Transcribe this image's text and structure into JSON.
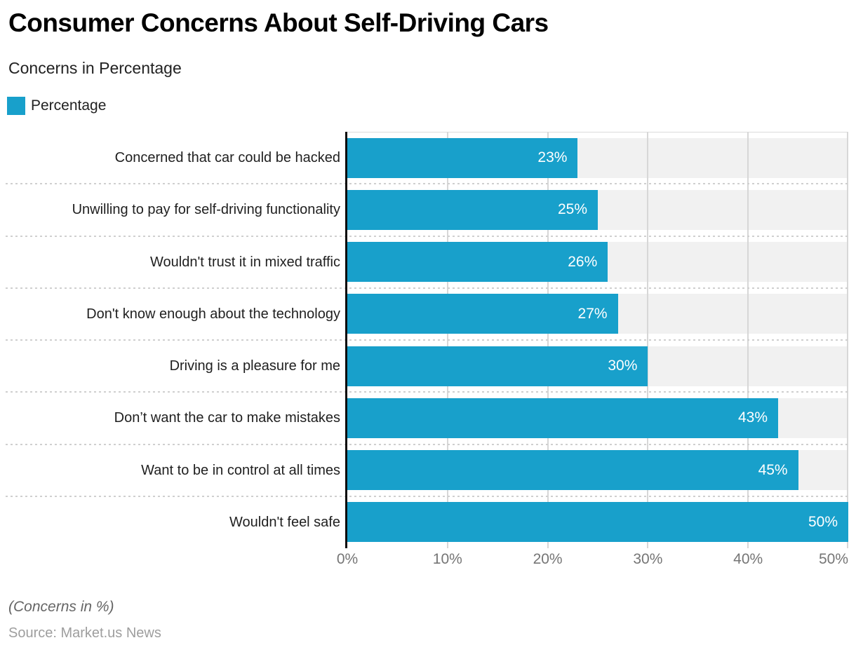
{
  "header": {
    "title": "Consumer Concerns About Self-Driving Cars",
    "subtitle": "Concerns in Percentage",
    "legend": {
      "label": "Percentage",
      "color": "#18A0CB"
    }
  },
  "chart_data": {
    "type": "bar",
    "orientation": "horizontal",
    "title": "Consumer Concerns About Self-Driving Cars",
    "subtitle": "Concerns in Percentage",
    "series_name": "Percentage",
    "categories": [
      "Concerned that car could be hacked",
      "Unwilling to pay for self-driving functionality",
      "Wouldn't trust it in mixed traffic",
      "Don't know enough about the technology",
      "Driving is a pleasure for me",
      "Don’t want the car to make mistakes",
      "Want to be in control at all times",
      "Wouldn't feel safe"
    ],
    "values": [
      23,
      25,
      26,
      27,
      30,
      43,
      45,
      50
    ],
    "value_labels": [
      "23%",
      "25%",
      "26%",
      "27%",
      "30%",
      "43%",
      "45%",
      "50%"
    ],
    "xlim": [
      0,
      50
    ],
    "x_ticks": [
      "0%",
      "10%",
      "20%",
      "30%",
      "40%",
      "50%"
    ],
    "grid": "vertical-solid-plus-dotted-row-separators",
    "legend_position": "top-left",
    "bar_color": "#18A0CB",
    "track_color": "#F1F1F1",
    "gridline_color": "#D7D7D7",
    "value_label_color": "#FFFFFF",
    "axis_label_color": "#757575"
  },
  "footer": {
    "note": "(Concerns in %)",
    "source": "Source: Market.us News"
  }
}
